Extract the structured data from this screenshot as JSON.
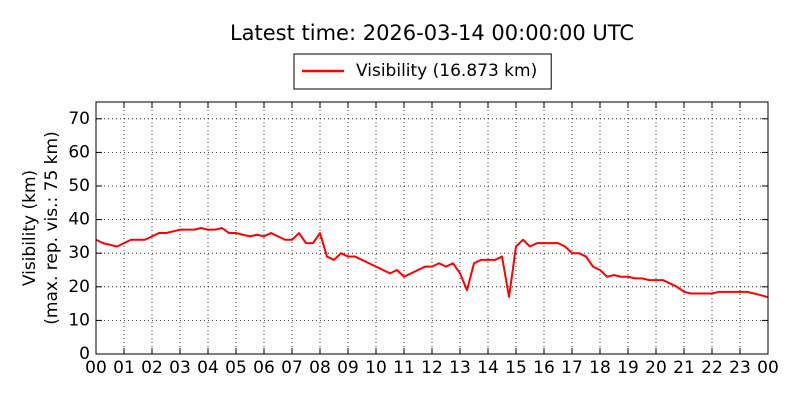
{
  "chart_data": {
    "type": "line",
    "title": "Latest time: 2026-03-14 00:00:00 UTC",
    "ylabel": [
      "Visibility (km)",
      "(max. rep. vis.: 75 km)"
    ],
    "x": [
      0,
      0.25,
      0.5,
      0.75,
      1,
      1.25,
      1.5,
      1.75,
      2,
      2.25,
      2.5,
      2.75,
      3,
      3.25,
      3.5,
      3.75,
      4,
      4.25,
      4.5,
      4.75,
      5,
      5.25,
      5.5,
      5.75,
      6,
      6.25,
      6.5,
      6.75,
      7,
      7.25,
      7.5,
      7.75,
      8,
      8.25,
      8.5,
      8.75,
      9,
      9.25,
      9.5,
      9.75,
      10,
      10.25,
      10.5,
      10.75,
      11,
      11.25,
      11.5,
      11.75,
      12,
      12.25,
      12.5,
      12.75,
      13,
      13.25,
      13.5,
      13.75,
      14,
      14.25,
      14.5,
      14.75,
      15,
      15.25,
      15.5,
      15.75,
      16,
      16.25,
      16.5,
      16.75,
      17,
      17.25,
      17.5,
      17.75,
      18,
      18.25,
      18.5,
      18.75,
      19,
      19.25,
      19.5,
      19.75,
      20,
      20.25,
      20.5,
      20.75,
      21,
      21.25,
      21.5,
      21.75,
      22,
      22.25,
      22.5,
      22.75,
      23,
      23.25,
      23.5,
      23.75,
      24
    ],
    "series": [
      {
        "name": "Visibility (16.873 km)",
        "color": "#ff0000",
        "values": [
          34,
          33,
          32.5,
          32,
          33,
          34,
          34,
          34,
          35,
          36,
          36,
          36.5,
          37,
          37,
          37,
          37.5,
          37,
          37,
          37.5,
          36,
          36,
          35.5,
          35,
          35.5,
          35,
          36,
          35,
          34,
          34,
          36,
          33,
          33,
          36,
          29,
          28,
          30,
          29,
          29,
          28,
          27,
          26,
          25,
          24,
          25,
          23,
          24,
          25,
          26,
          26,
          27,
          26,
          27,
          24,
          19,
          27,
          28,
          28,
          28,
          29,
          17,
          32,
          34,
          32,
          33,
          33,
          33,
          33,
          32,
          30,
          30,
          29,
          26,
          25,
          23,
          23.5,
          23,
          23,
          22.5,
          22.5,
          22,
          22,
          22,
          21,
          20,
          18.5,
          18,
          18,
          18,
          18,
          18.5,
          18.5,
          18.5,
          18.5,
          18.5,
          18,
          17.5,
          16.9
        ]
      }
    ],
    "xlim": [
      0,
      24
    ],
    "ylim": [
      0,
      75
    ],
    "xticks": [
      {
        "value": 0,
        "label": "00"
      },
      {
        "value": 1,
        "label": "01"
      },
      {
        "value": 2,
        "label": "02"
      },
      {
        "value": 3,
        "label": "03"
      },
      {
        "value": 4,
        "label": "04"
      },
      {
        "value": 5,
        "label": "05"
      },
      {
        "value": 6,
        "label": "06"
      },
      {
        "value": 7,
        "label": "07"
      },
      {
        "value": 8,
        "label": "08"
      },
      {
        "value": 9,
        "label": "09"
      },
      {
        "value": 10,
        "label": "10"
      },
      {
        "value": 11,
        "label": "11"
      },
      {
        "value": 12,
        "label": "12"
      },
      {
        "value": 13,
        "label": "13"
      },
      {
        "value": 14,
        "label": "14"
      },
      {
        "value": 15,
        "label": "15"
      },
      {
        "value": 16,
        "label": "16"
      },
      {
        "value": 17,
        "label": "17"
      },
      {
        "value": 18,
        "label": "18"
      },
      {
        "value": 19,
        "label": "19"
      },
      {
        "value": 20,
        "label": "20"
      },
      {
        "value": 21,
        "label": "21"
      },
      {
        "value": 22,
        "label": "22"
      },
      {
        "value": 23,
        "label": "23"
      },
      {
        "value": 24,
        "label": "00"
      }
    ],
    "yticks": [
      0,
      10,
      20,
      30,
      40,
      50,
      60,
      70
    ],
    "grid": true,
    "legend": "top"
  }
}
